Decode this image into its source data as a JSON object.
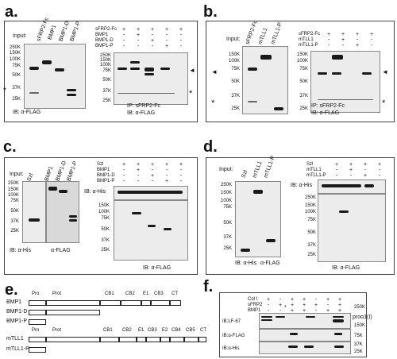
{
  "panels": {
    "a": {
      "label": "a.",
      "input_label": "Input:",
      "lanes": [
        "sFRP2-Fc",
        "BMP1",
        "BMP1-D",
        "BMP1-P"
      ],
      "mw": [
        "250K",
        "150K",
        "100K",
        "75K",
        "50K",
        "37K",
        "25K"
      ],
      "rows": [
        "sFRP2-Fc",
        "BMP1",
        "BMP1-D",
        "BMP1-P"
      ],
      "signs": [
        [
          "+",
          "+",
          "+",
          "+",
          "+"
        ],
        [
          "-",
          "+",
          "-",
          "-",
          "-"
        ],
        [
          "-",
          "-",
          "+",
          "-",
          "-"
        ],
        [
          "-",
          "-",
          "-",
          "+",
          "-"
        ]
      ],
      "ib_left": "IB: α-FLAG",
      "ip": "IP: sFRP2-Fc",
      "ib_right": "IB: α-FLAG",
      "star": "*",
      "arrow": "◄"
    },
    "b": {
      "label": "b.",
      "input_label": "Input:",
      "lanes": [
        "sFRP2-Fc",
        "mTLL1",
        "mTLL1-P"
      ],
      "mw": [
        "150K",
        "100K",
        "75K",
        "50K",
        "37K",
        "25K"
      ],
      "rows": [
        "sFRP2-Fc",
        "mTLL1",
        "mTLL1-P"
      ],
      "signs": [
        [
          "+",
          "+",
          "+",
          "+"
        ],
        [
          "-",
          "+",
          "-",
          "-"
        ],
        [
          "-",
          "-",
          "+",
          "-"
        ]
      ],
      "ip": "IP: sFRP2-Fc",
      "ib_right": "IB: α-FLAG",
      "star": "*",
      "arrow": "◄"
    },
    "c": {
      "label": "c.",
      "input_label": "Input:",
      "lanes": [
        "Szl",
        "BMP1",
        "BMP1-D",
        "BMP1-P"
      ],
      "mw": [
        "250K",
        "150K",
        "100K",
        "75K",
        "50K",
        "37K",
        "25K"
      ],
      "rows": [
        "Szl",
        "BMP1",
        "BMP1-D",
        "BMP1-P"
      ],
      "signs": [
        [
          "+",
          "+",
          "+",
          "+",
          "+"
        ],
        [
          "-",
          "+",
          "-",
          "-",
          "-"
        ],
        [
          "-",
          "-",
          "+",
          "-",
          "-"
        ],
        [
          "-",
          "-",
          "-",
          "+",
          "-"
        ]
      ],
      "ib_his": "IB: α-His",
      "ib_left1": "IB: α-His",
      "ib_left2": "α-FLAG",
      "ib_right": "IB: α-FLAG",
      "mw_right": [
        "150K",
        "100K",
        "75K",
        "50K",
        "37K",
        "25K"
      ]
    },
    "d": {
      "label": "d.",
      "input_label": "Input:",
      "lanes": [
        "Szl",
        "mTLL1",
        "mTLL1-P"
      ],
      "mw": [
        "250K",
        "150K",
        "100K",
        "75K",
        "50K",
        "37K",
        "25K"
      ],
      "rows": [
        "Szl",
        "mTLL1",
        "mTLL1-P"
      ],
      "signs": [
        [
          "+",
          "+",
          "+",
          "+"
        ],
        [
          "-",
          "+",
          "-",
          "-"
        ],
        [
          "-",
          "-",
          "+",
          "-"
        ]
      ],
      "ib_his": "IB: α-His",
      "ib_left1": "IB: α-His",
      "ib_left2": "α-FLAG",
      "ib_right": "IB: α-FLAG",
      "mw_right": [
        "250K",
        "150K",
        "100K",
        "75K",
        "50K",
        "37K",
        "25K"
      ]
    },
    "e": {
      "label": "e.",
      "bmp_domains": [
        "Pro",
        "Prot",
        "CB1",
        "CB2",
        "E1",
        "CB3",
        "CT"
      ],
      "tll_domains": [
        "Pro",
        "Prot",
        "CB1",
        "CB2",
        "E1",
        "CB3",
        "E2",
        "CB4",
        "CB5",
        "CT"
      ],
      "constructs": [
        "BMP1",
        "BMP1-D",
        "BMP1-P",
        "mTLL1",
        "mTLL1-P"
      ]
    },
    "f": {
      "label": "f.",
      "rows": [
        "Col I",
        "sFRP2",
        "BMP1"
      ],
      "signs": [
        [
          "+",
          "-",
          "+",
          "+",
          "-",
          "+",
          "+"
        ],
        [
          "-",
          "+",
          "+",
          "+",
          "+",
          "-",
          "+"
        ],
        [
          "-",
          "-",
          "+",
          "+",
          "-",
          "+",
          "+"
        ]
      ],
      "blots": [
        "IB:LF-67",
        "IB:α-FLAG",
        "IB:α-His"
      ],
      "mw": [
        "250K",
        "150K",
        "75K",
        "37K",
        "25K"
      ],
      "target": "proα1(I)",
      "star": "*"
    }
  }
}
